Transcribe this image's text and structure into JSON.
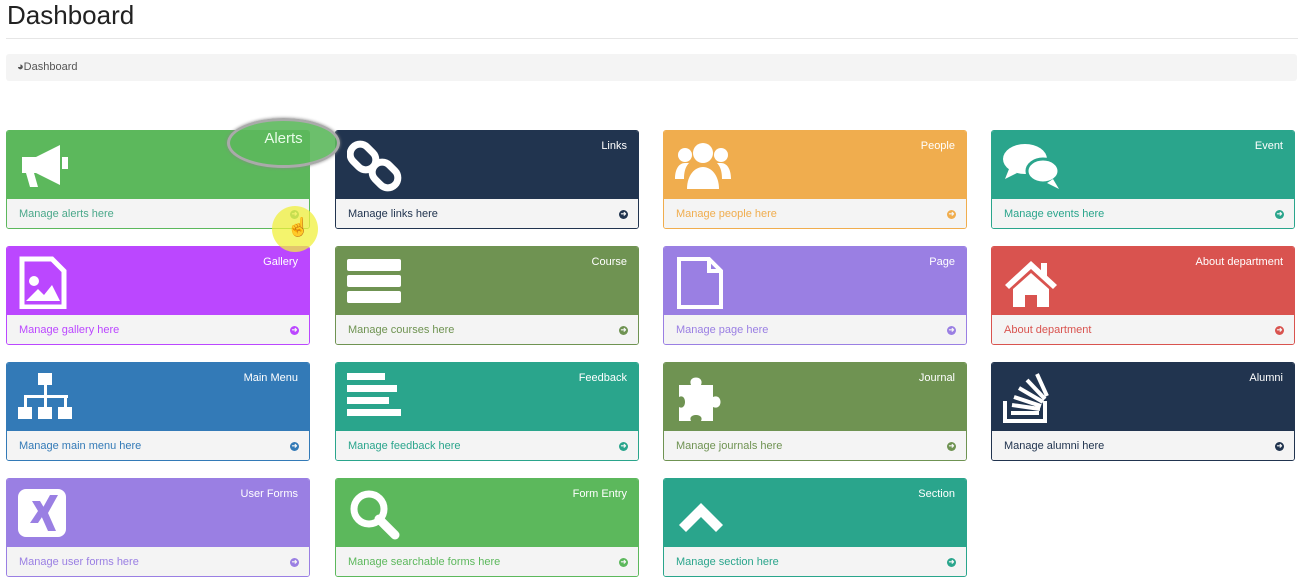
{
  "page_title": "Dashboard",
  "breadcrumb": {
    "icon": "dashboard-icon",
    "label": "Dashboard"
  },
  "highlight_label": "Alerts",
  "cards": [
    {
      "title": "",
      "link": "Manage alerts here",
      "icon": "bullhorn-icon",
      "color": "#5cb85c",
      "text": "#4aa88a"
    },
    {
      "title": "Links",
      "link": "Manage links here",
      "icon": "link-icon",
      "color": "#21344f",
      "text": "#21344f"
    },
    {
      "title": "People",
      "link": "Manage people here",
      "icon": "users-icon",
      "color": "#f0ad4e",
      "text": "#f0ad4e"
    },
    {
      "title": "Event",
      "link": "Manage events here",
      "icon": "comments-icon",
      "color": "#2aa58c",
      "text": "#2aa58c"
    },
    {
      "title": "Gallery",
      "link": "Manage gallery here",
      "icon": "image-file-icon",
      "color": "#bb47ff",
      "text": "#bb47ff"
    },
    {
      "title": "Course",
      "link": "Manage courses here",
      "icon": "server-icon",
      "color": "#6f9352",
      "text": "#6f9352"
    },
    {
      "title": "Page",
      "link": "Manage page here",
      "icon": "file-icon",
      "color": "#9a7fe3",
      "text": "#9a7fe3"
    },
    {
      "title": "About department",
      "link": "About department",
      "icon": "home-icon",
      "color": "#d9534f",
      "text": "#d9534f"
    },
    {
      "title": "Main Menu",
      "link": "Manage main menu here",
      "icon": "sitemap-icon",
      "color": "#337ab7",
      "text": "#337ab7"
    },
    {
      "title": "Feedback",
      "link": "Manage feedback here",
      "icon": "align-left-icon",
      "color": "#2aa58c",
      "text": "#2aa58c"
    },
    {
      "title": "Journal",
      "link": "Manage journals here",
      "icon": "puzzle-icon",
      "color": "#6f9352",
      "text": "#6f9352"
    },
    {
      "title": "Alumni",
      "link": "Manage alumni here",
      "icon": "stack-overflow-icon",
      "color": "#21344f",
      "text": "#21344f"
    },
    {
      "title": "User Forms",
      "link": "Manage user forms here",
      "icon": "xing-icon",
      "color": "#9a7fe3",
      "text": "#9a7fe3"
    },
    {
      "title": "Form Entry",
      "link": "Manage searchable forms here",
      "icon": "search-icon",
      "color": "#5cb85c",
      "text": "#5cb85c"
    },
    {
      "title": "Section",
      "link": "Manage section here",
      "icon": "chevron-up-icon",
      "color": "#2aa58c",
      "text": "#2aa58c"
    }
  ]
}
